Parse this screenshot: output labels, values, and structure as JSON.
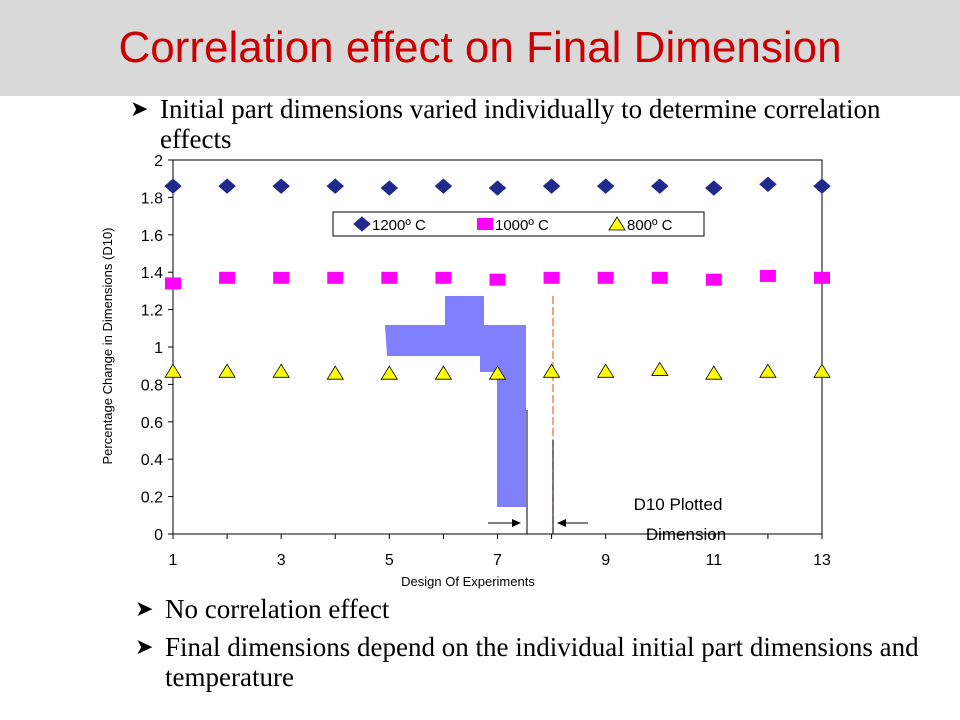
{
  "slide": {
    "title": "Correlation effect on Final Dimension",
    "bullet_top": "Initial part dimensions varied individually to determine correlation effects",
    "bullets": [
      "No correlation effect",
      "Final dimensions depend on the individual initial part dimensions and temperature"
    ],
    "bullet_icon": "arrow-bullet-icon"
  },
  "chart_data": {
    "type": "scatter",
    "xlabel": "Design Of Experiments",
    "ylabel": "Percentage Change in Dimensions (D10)",
    "xlim": [
      1,
      13
    ],
    "ylim": [
      0,
      2
    ],
    "x_ticks": [
      "1",
      "3",
      "5",
      "7",
      "9",
      "11",
      "13"
    ],
    "y_ticks": [
      "0",
      "0.2",
      "0.4",
      "0.6",
      "0.8",
      "1",
      "1.2",
      "1.4",
      "1.6",
      "1.8",
      "2"
    ],
    "grid": false,
    "legend_position": "top-center",
    "x": [
      1,
      2,
      3,
      4,
      5,
      6,
      7,
      8,
      9,
      10,
      11,
      12,
      13
    ],
    "series": [
      {
        "name": "1200º C",
        "marker": "diamond",
        "color": "#1f2a8c",
        "values": [
          1.86,
          1.86,
          1.86,
          1.86,
          1.85,
          1.86,
          1.85,
          1.86,
          1.86,
          1.86,
          1.85,
          1.87,
          1.86
        ]
      },
      {
        "name": "1000º C",
        "marker": "square",
        "color": "#ff00ff",
        "values": [
          1.34,
          1.37,
          1.37,
          1.37,
          1.37,
          1.37,
          1.36,
          1.37,
          1.37,
          1.37,
          1.36,
          1.38,
          1.37
        ]
      },
      {
        "name": "800º C",
        "marker": "triangle",
        "color": "#ffff00",
        "values": [
          0.87,
          0.87,
          0.87,
          0.86,
          0.86,
          0.86,
          0.86,
          0.87,
          0.87,
          0.88,
          0.86,
          0.87,
          0.87
        ]
      }
    ],
    "annotation": {
      "text_line1": "D10 Plotted",
      "text_line2": "Dimension",
      "part_color": "#8080ff",
      "dim_line_color": "#e07030"
    }
  }
}
